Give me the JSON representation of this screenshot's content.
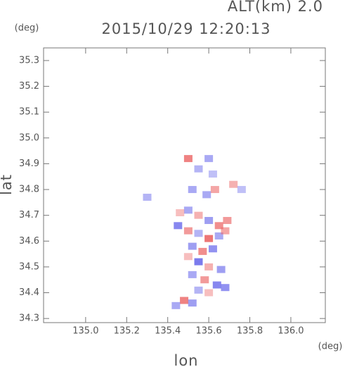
{
  "chart_data": {
    "type": "scatter",
    "title": "2015/10/29 12:20:13",
    "subtitle": "ALT(km) 2.0",
    "y_unit": "(deg)",
    "x_unit": "(deg)",
    "xlabel": "lon",
    "ylabel": "lat",
    "xlim": [
      134.795,
      136.168
    ],
    "ylim": [
      34.284,
      35.349
    ],
    "xticks": [
      {
        "value": 135.0,
        "label": "135.0"
      },
      135.2,
      135.4,
      135.6,
      135.8,
      {
        "value": 136.0,
        "label": "136.0"
      }
    ],
    "yticks": [
      34.3,
      34.4,
      34.5,
      34.6,
      34.7,
      34.8,
      34.9,
      {
        "value": 35.0,
        "label": "35.0"
      },
      35.1,
      35.2,
      35.3
    ],
    "negative_color": "#7070ec",
    "positive_color": "#ec6a6a",
    "x": [
      135.5,
      135.55,
      135.6,
      135.65,
      135.45,
      135.5,
      135.55,
      135.6,
      135.65,
      135.68,
      135.52,
      135.57,
      135.62,
      135.5,
      135.55,
      135.6,
      135.66,
      135.52,
      135.58,
      135.64,
      135.68,
      135.55,
      135.6,
      135.48,
      135.52,
      135.44,
      135.5,
      135.55,
      135.6,
      135.62,
      135.52,
      135.63,
      135.72,
      135.76,
      135.3,
      135.59,
      135.46,
      135.69
    ],
    "y": [
      34.72,
      34.7,
      34.68,
      34.66,
      34.66,
      34.64,
      34.63,
      34.61,
      34.62,
      34.64,
      34.58,
      34.56,
      34.57,
      34.54,
      34.52,
      34.5,
      34.49,
      34.47,
      34.45,
      34.43,
      34.42,
      34.41,
      34.4,
      34.37,
      34.36,
      34.35,
      34.92,
      34.88,
      34.92,
      34.86,
      34.8,
      34.8,
      34.82,
      34.8,
      34.77,
      34.78,
      34.71,
      34.68
    ],
    "values": [
      -0.5,
      0.4,
      -0.6,
      0.7,
      -0.8,
      0.6,
      -0.4,
      0.9,
      -0.5,
      0.5,
      -0.6,
      0.7,
      -0.7,
      0.3,
      -0.9,
      0.4,
      -0.6,
      -0.5,
      0.6,
      -0.8,
      -0.7,
      -0.4,
      0.3,
      0.8,
      -0.6,
      -0.5,
      0.8,
      -0.4,
      -0.5,
      -0.3,
      -0.5,
      0.5,
      0.4,
      -0.3,
      -0.4,
      -0.5,
      0.3,
      0.6
    ]
  }
}
